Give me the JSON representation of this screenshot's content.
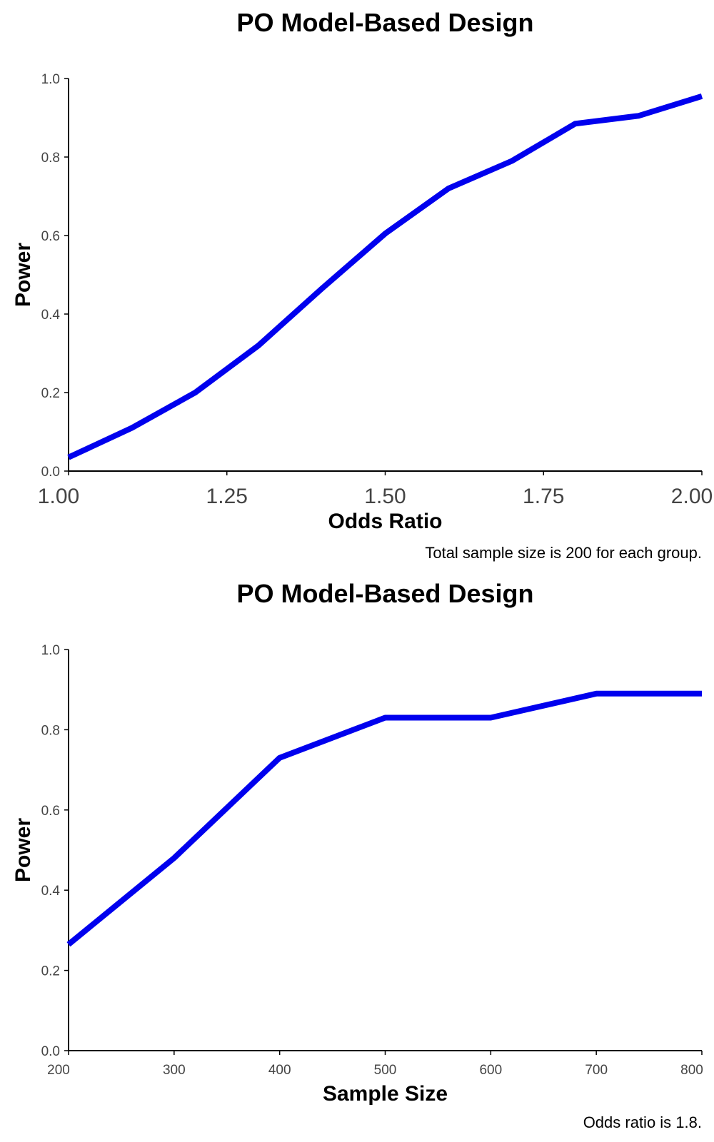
{
  "chart_data": [
    {
      "type": "line",
      "title": "PO Model-Based Design",
      "xlabel": "Odds Ratio",
      "ylabel": "Power",
      "caption": "Total sample size is 200 for each group.",
      "xlim": [
        1.0,
        2.0
      ],
      "ylim": [
        0.0,
        1.0
      ],
      "x_ticks": [
        "1.00",
        "1.25",
        "1.50",
        "1.75",
        "2.00"
      ],
      "y_ticks": [
        "0.0",
        "0.2",
        "0.4",
        "0.6",
        "0.8",
        "1.0"
      ],
      "series_color": "#0000ee",
      "grid": false,
      "x": [
        1.0,
        1.1,
        1.2,
        1.3,
        1.4,
        1.5,
        1.6,
        1.7,
        1.8,
        1.9,
        2.0
      ],
      "y": [
        0.035,
        0.11,
        0.2,
        0.32,
        0.465,
        0.605,
        0.72,
        0.79,
        0.885,
        0.905,
        0.955
      ]
    },
    {
      "type": "line",
      "title": "PO Model-Based Design",
      "xlabel": "Sample Size",
      "ylabel": "Power",
      "caption": "Odds ratio is 1.8.",
      "xlim": [
        200,
        800
      ],
      "ylim": [
        0.0,
        1.0
      ],
      "x_ticks": [
        "200",
        "300",
        "400",
        "500",
        "600",
        "700",
        "800"
      ],
      "y_ticks": [
        "0.0",
        "0.2",
        "0.4",
        "0.6",
        "0.8",
        "1.0"
      ],
      "series_color": "#0000ee",
      "grid": false,
      "x": [
        200,
        300,
        400,
        500,
        600,
        700,
        800
      ],
      "y": [
        0.265,
        0.48,
        0.73,
        0.83,
        0.83,
        0.89,
        0.89
      ]
    }
  ]
}
